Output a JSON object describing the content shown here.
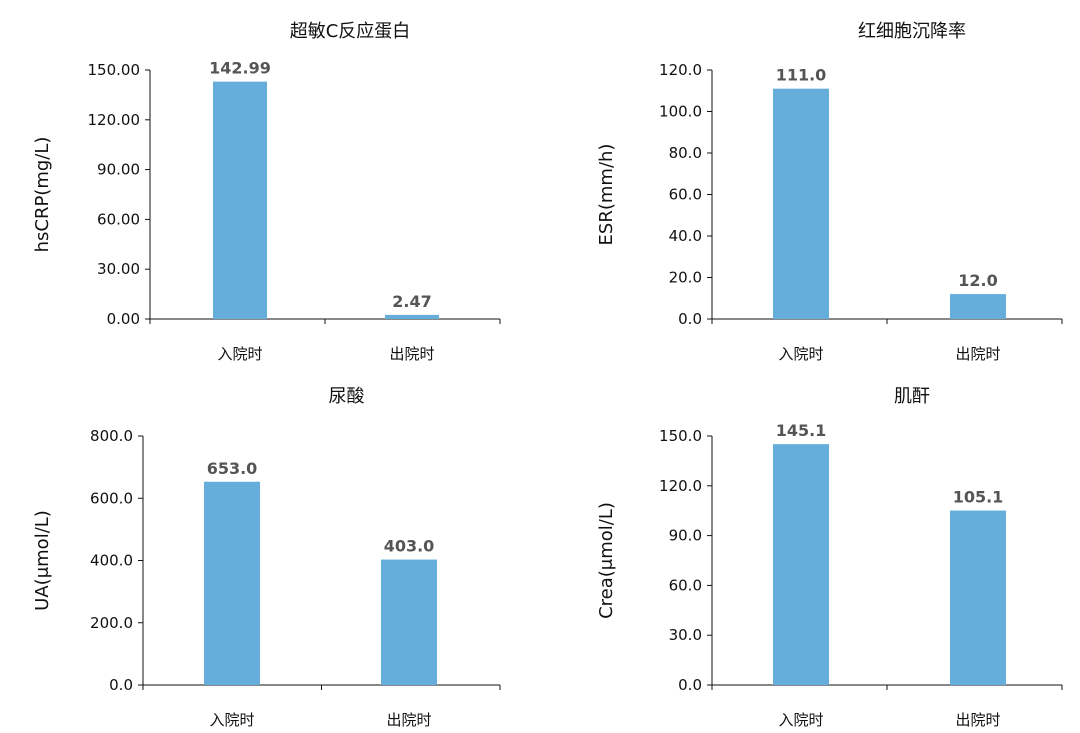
{
  "chart_data": [
    {
      "type": "bar",
      "title": "超敏C反应蛋白",
      "ylabel": "hsCRP(mg/L)",
      "xlabel": "",
      "categories": [
        "入院时",
        "出院时"
      ],
      "values": [
        142.99,
        2.47
      ],
      "value_labels": [
        "142.99",
        "2.47"
      ],
      "ylim": [
        0,
        150
      ],
      "yticks": [
        "0.00",
        "30.00",
        "60.00",
        "90.00",
        "120.00",
        "150.00"
      ],
      "bar_color": "#65AEDB",
      "grid": false,
      "legend": "none"
    },
    {
      "type": "bar",
      "title": "红细胞沉降率",
      "ylabel": "ESR(mm/h)",
      "xlabel": "",
      "categories": [
        "入院时",
        "出院时"
      ],
      "values": [
        111.0,
        12.0
      ],
      "value_labels": [
        "111.0",
        "12.0"
      ],
      "ylim": [
        0,
        120
      ],
      "yticks": [
        "0.0",
        "20.0",
        "40.0",
        "60.0",
        "80.0",
        "100.0",
        "120.0"
      ],
      "bar_color": "#65AEDB",
      "grid": false,
      "legend": "none"
    },
    {
      "type": "bar",
      "title": "尿酸",
      "ylabel": "UA(μmol/L)",
      "xlabel": "",
      "categories": [
        "入院时",
        "出院时"
      ],
      "values": [
        653.0,
        403.0
      ],
      "value_labels": [
        "653.0",
        "403.0"
      ],
      "ylim": [
        0,
        800
      ],
      "yticks": [
        "0.0",
        "200.0",
        "400.0",
        "600.0",
        "800.0"
      ],
      "bar_color": "#65AEDB",
      "grid": false,
      "legend": "none"
    },
    {
      "type": "bar",
      "title": "肌酐",
      "ylabel": "Crea(μmol/L)",
      "xlabel": "",
      "categories": [
        "入院时",
        "出院时"
      ],
      "values": [
        145.1,
        105.1
      ],
      "value_labels": [
        "145.1",
        "105.1"
      ],
      "ylim": [
        0,
        150
      ],
      "yticks": [
        "0.0",
        "30.0",
        "60.0",
        "90.0",
        "120.0",
        "150.0"
      ],
      "bar_color": "#65AEDB",
      "grid": false,
      "legend": "none"
    }
  ]
}
